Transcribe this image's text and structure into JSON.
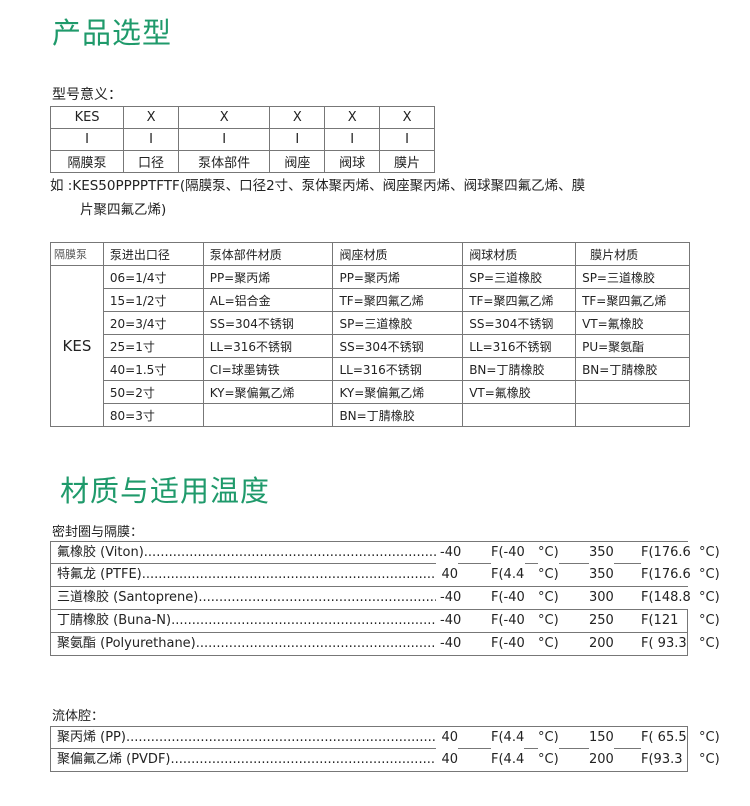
{
  "section1": {
    "title": "产品选型",
    "model_meaning_label": "型号意义：",
    "model_table": [
      [
        "KES",
        "X",
        "X",
        "X",
        "X",
        "X"
      ],
      [
        "I",
        "I",
        "I",
        "I",
        "I",
        "I"
      ],
      [
        "隔膜泵",
        "口径",
        "泵体部件",
        "阀座",
        "阀球",
        "膜片"
      ]
    ],
    "example_line1": "如 :KES50PPPPTFTF(隔膜泵、口径2寸、泵体聚丙烯、阀座聚丙烯、阀球聚四氟乙烯、膜",
    "example_line2": "片聚四氟乙烯)",
    "selection_table": {
      "headers": [
        "隔膜泵",
        "泵进出口径",
        "泵体部件材质",
        "阀座材质",
        "阀球材质",
        "膜片材质"
      ],
      "series": "KES",
      "rows": [
        [
          "06=1/4寸",
          "PP=聚丙烯",
          "PP=聚丙烯",
          "SP=三道橡胶",
          "SP=三道橡胶"
        ],
        [
          "15=1/2寸",
          "AL=铝合金",
          "TF=聚四氟乙烯",
          "TF=聚四氟乙烯",
          "TF=聚四氟乙烯"
        ],
        [
          "20=3/4寸",
          "SS=304不锈钢",
          "SP=三道橡胶",
          "SS=304不锈钢",
          "VT=氟橡胶"
        ],
        [
          "25=1寸",
          "LL=316不锈钢",
          "SS=304不锈钢",
          "LL=316不锈钢",
          "PU=聚氨酯"
        ],
        [
          "40=1.5寸",
          "CI=球墨铸铁",
          "LL=316不锈钢",
          "BN=丁腈橡胶",
          "BN=丁腈橡胶"
        ],
        [
          "50=2寸",
          "KY=聚偏氟乙烯",
          "KY=聚偏氟乙烯",
          "VT=氟橡胶",
          ""
        ],
        [
          "80=3寸",
          "",
          "BN=丁腈橡胶",
          "",
          ""
        ]
      ]
    }
  },
  "section2": {
    "title": "材质与适用温度",
    "seal_label": "密封圈与隔膜：",
    "seal_rows": [
      {
        "name": "氟橡胶 (Viton)",
        "min": "-40",
        "minc": "F(-40",
        "unit": "°C)",
        "max": "350",
        "maxc": "F(176.6",
        "unit2": "°C)"
      },
      {
        "name": "特氟龙 (PTFE)",
        "min": "40",
        "minc": "F(4.4",
        "unit": "°C)",
        "max": "350",
        "maxc": "F(176.6",
        "unit2": "°C)"
      },
      {
        "name": "三道橡胶 (Santoprene)",
        "min": "-40",
        "minc": "F(-40",
        "unit": "°C)",
        "max": "300",
        "maxc": "F(148.8",
        "unit2": "°C)"
      },
      {
        "name": "丁腈橡胶 (Buna-N)",
        "min": "-40",
        "minc": "F(-40",
        "unit": "°C)",
        "max": "250",
        "maxc": "F(121",
        "unit2": "°C)"
      },
      {
        "name": "聚氨酯 (Polyurethane)",
        "min": "-40",
        "minc": "F(-40",
        "unit": "°C)",
        "max": "200",
        "maxc": "F( 93.3",
        "unit2": "°C)"
      }
    ],
    "fluid_label": "流体腔：",
    "fluid_rows": [
      {
        "name": "聚丙烯 (PP)",
        "min": "40",
        "minc": "F(4.4",
        "unit": "°C)",
        "max": "150",
        "maxc": "F( 65.5",
        "unit2": "°C)"
      },
      {
        "name": "聚偏氟乙烯 (PVDF)",
        "min": "40",
        "minc": "F(4.4",
        "unit": "°C)",
        "max": "200",
        "maxc": "F(93.3",
        "unit2": "°C)"
      }
    ]
  },
  "colors": {
    "heading": "#1f9a6b",
    "border": "#777777"
  }
}
